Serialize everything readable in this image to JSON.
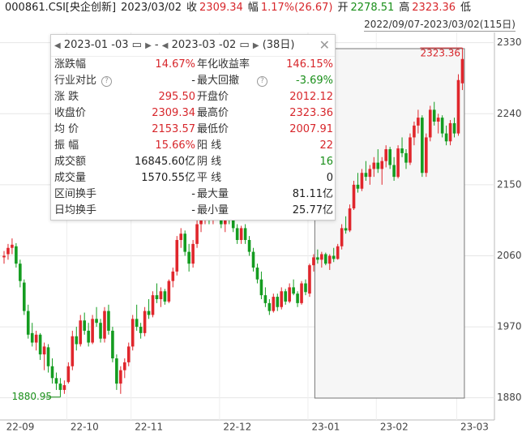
{
  "header": {
    "items": [
      {
        "label": "000861.CSI[央企创新]",
        "value": null,
        "color": "#222"
      },
      {
        "label": "2023/03/02",
        "value": null,
        "color": "#222"
      },
      {
        "label": "收",
        "value": "2309.34",
        "color": "#d7262b"
      },
      {
        "label": "幅",
        "value": "1.17%(26.67)",
        "color": "#d7262b"
      },
      {
        "label": "开",
        "value": "2278.51",
        "color": "#1a8f1a"
      },
      {
        "label": "高",
        "value": "2323.36",
        "color": "#d7262b"
      },
      {
        "label": "低",
        "value": null,
        "color": "#222"
      }
    ],
    "range": "2022/09/07-2023/03/02(115日)"
  },
  "popup": {
    "start": "2023-01 -03",
    "end": "2023-03 -02",
    "days": "(38日)",
    "rows": [
      [
        {
          "label": "涨跌幅",
          "value": "14.67%",
          "color": "#d7262b"
        },
        {
          "label": "年化收益率",
          "value": "146.15%",
          "color": "#d7262b"
        }
      ],
      [
        {
          "label": "行业对比",
          "value": "-",
          "color": "#222",
          "help": true
        },
        {
          "label": "最大回撤",
          "value": "-3.69%",
          "color": "#1a8f1a",
          "help": true
        }
      ],
      [
        {
          "label": "涨 跌",
          "value": "295.50",
          "color": "#d7262b"
        },
        {
          "label": "开盘价",
          "value": "2012.12",
          "color": "#d7262b"
        }
      ],
      [
        {
          "label": "收盘价",
          "value": "2309.34",
          "color": "#d7262b"
        },
        {
          "label": "最高价",
          "value": "2323.36",
          "color": "#d7262b"
        }
      ],
      [
        {
          "label": "均 价",
          "value": "2153.57",
          "color": "#d7262b"
        },
        {
          "label": "最低价",
          "value": "2007.91",
          "color": "#d7262b"
        }
      ],
      [
        {
          "label": "振 幅",
          "value": "15.66%",
          "color": "#d7262b"
        },
        {
          "label": "阳 线",
          "value": "22",
          "color": "#d7262b"
        }
      ],
      [
        {
          "label": "成交额",
          "value": "16845.60亿",
          "color": "#222"
        },
        {
          "label": "阴 线",
          "value": "16",
          "color": "#1a8f1a"
        }
      ],
      [
        {
          "label": "成交量",
          "value": "1570.55亿",
          "color": "#222"
        },
        {
          "label": "平 线",
          "value": "0",
          "color": "#222"
        }
      ],
      [
        {
          "label": "区间换手",
          "value": "-",
          "color": "#222"
        },
        {
          "label": "最大量",
          "value": "81.11亿",
          "color": "#222"
        }
      ],
      [
        {
          "label": "日均换手",
          "value": "-",
          "color": "#222"
        },
        {
          "label": "最小量",
          "value": "25.77亿",
          "color": "#222"
        }
      ]
    ]
  },
  "chart_data": {
    "type": "candlestick",
    "up_color": "#e0262c",
    "down_color": "#149c20",
    "ylim": [
      1855,
      2343
    ],
    "yticks": [
      1880,
      1970,
      2060,
      2150,
      2240,
      2330
    ],
    "grid": true,
    "months": [
      {
        "value": 0,
        "label": "22-09"
      },
      {
        "value": 16,
        "label": "22-10"
      },
      {
        "value": 32,
        "label": "22-11"
      },
      {
        "value": 54,
        "label": "22-12"
      },
      {
        "value": 76,
        "label": "23-01"
      },
      {
        "value": 93,
        "label": "23-02"
      },
      {
        "value": 113,
        "label": "23-03"
      }
    ],
    "selection": [
      78,
      114
    ],
    "annotations": [
      {
        "value": 2323.36,
        "index": 114,
        "color": "#d7262b"
      },
      {
        "value": 1880.95,
        "index": 14,
        "color": "#1a8f1a"
      }
    ],
    "ohlc": [
      [
        2058,
        2066,
        2050,
        2060
      ],
      [
        2062,
        2075,
        2055,
        2070
      ],
      [
        2070,
        2082,
        2062,
        2074
      ],
      [
        2072,
        2076,
        2045,
        2050
      ],
      [
        2050,
        2055,
        2020,
        2028
      ],
      [
        2026,
        2030,
        1985,
        1990
      ],
      [
        1990,
        1998,
        1955,
        1960
      ],
      [
        1962,
        1975,
        1945,
        1950
      ],
      [
        1950,
        1965,
        1940,
        1960
      ],
      [
        1960,
        1962,
        1928,
        1935
      ],
      [
        1935,
        1950,
        1915,
        1945
      ],
      [
        1944,
        1948,
        1912,
        1920
      ],
      [
        1920,
        1930,
        1898,
        1905
      ],
      [
        1905,
        1912,
        1890,
        1898
      ],
      [
        1898,
        1905,
        1880.95,
        1890
      ],
      [
        1890,
        1902,
        1885,
        1896
      ],
      [
        1900,
        1925,
        1898,
        1920
      ],
      [
        1920,
        1965,
        1915,
        1958
      ],
      [
        1958,
        1970,
        1940,
        1948
      ],
      [
        1948,
        1985,
        1945,
        1978
      ],
      [
        1978,
        1988,
        1960,
        1965
      ],
      [
        1965,
        1975,
        1945,
        1950
      ],
      [
        1950,
        1985,
        1948,
        1980
      ],
      [
        1980,
        1995,
        1970,
        1975
      ],
      [
        1975,
        1980,
        1950,
        1955
      ],
      [
        1955,
        1995,
        1950,
        1990
      ],
      [
        1990,
        1998,
        1960,
        1965
      ],
      [
        1965,
        1970,
        1925,
        1930
      ],
      [
        1930,
        1935,
        1890,
        1898
      ],
      [
        1898,
        1920,
        1885,
        1915
      ],
      [
        1915,
        1930,
        1905,
        1925
      ],
      [
        1925,
        1950,
        1920,
        1945
      ],
      [
        1945,
        1985,
        1940,
        1980
      ],
      [
        1980,
        1998,
        1965,
        1970
      ],
      [
        1970,
        1975,
        1955,
        1962
      ],
      [
        1962,
        1995,
        1958,
        1990
      ],
      [
        1990,
        2005,
        1980,
        1985
      ],
      [
        1985,
        2015,
        1982,
        2010
      ],
      [
        2010,
        2025,
        2000,
        2005
      ],
      [
        2005,
        2020,
        1995,
        2015
      ],
      [
        2015,
        2018,
        1998,
        2002
      ],
      [
        2002,
        2030,
        2000,
        2028
      ],
      [
        2028,
        2045,
        2020,
        2040
      ],
      [
        2040,
        2085,
        2035,
        2080
      ],
      [
        2080,
        2095,
        2070,
        2088
      ],
      [
        2088,
        2092,
        2060,
        2065
      ],
      [
        2065,
        2075,
        2040,
        2050
      ],
      [
        2050,
        2080,
        2045,
        2075
      ],
      [
        2075,
        2105,
        2070,
        2100
      ],
      [
        2100,
        2115,
        2090,
        2110
      ],
      [
        2110,
        2125,
        2100,
        2118
      ],
      [
        2118,
        2122,
        2100,
        2105
      ],
      [
        2105,
        2130,
        2100,
        2125
      ],
      [
        2125,
        2135,
        2105,
        2110
      ],
      [
        2110,
        2120,
        2095,
        2100
      ],
      [
        2100,
        2115,
        2090,
        2112
      ],
      [
        2112,
        2125,
        2100,
        2108
      ],
      [
        2108,
        2112,
        2090,
        2095
      ],
      [
        2095,
        2100,
        2075,
        2080
      ],
      [
        2080,
        2098,
        2075,
        2095
      ],
      [
        2095,
        2100,
        2075,
        2080
      ],
      [
        2080,
        2085,
        2060,
        2065
      ],
      [
        2065,
        2070,
        2040,
        2045
      ],
      [
        2045,
        2050,
        2025,
        2030
      ],
      [
        2030,
        2040,
        2005,
        2010
      ],
      [
        2010,
        2020,
        1995,
        2000
      ],
      [
        2000,
        2005,
        1985,
        1990
      ],
      [
        1990,
        2012,
        1988,
        2008
      ],
      [
        2008,
        2012,
        1990,
        1995
      ],
      [
        1995,
        2020,
        1992,
        2015
      ],
      [
        2015,
        2018,
        1998,
        2002
      ],
      [
        2002,
        2025,
        2000,
        2020
      ],
      [
        2020,
        2030,
        2010,
        2012
      ],
      [
        2012,
        2015,
        1995,
        2000
      ],
      [
        2000,
        2028,
        1998,
        2025
      ],
      [
        2025,
        2030,
        2010,
        2014
      ],
      [
        2012.12,
        2050,
        2007.91,
        2048
      ],
      [
        2048,
        2062,
        2040,
        2058
      ],
      [
        2058,
        2068,
        2050,
        2055
      ],
      [
        2055,
        2065,
        2045,
        2062
      ],
      [
        2062,
        2064,
        2048,
        2050
      ],
      [
        2050,
        2062,
        2042,
        2060
      ],
      [
        2060,
        2070,
        2052,
        2056
      ],
      [
        2056,
        2075,
        2055,
        2072
      ],
      [
        2072,
        2100,
        2068,
        2095
      ],
      [
        2095,
        2110,
        2088,
        2092
      ],
      [
        2092,
        2125,
        2090,
        2120
      ],
      [
        2120,
        2155,
        2118,
        2150
      ],
      [
        2150,
        2165,
        2140,
        2145
      ],
      [
        2145,
        2170,
        2142,
        2165
      ],
      [
        2165,
        2180,
        2155,
        2160
      ],
      [
        2160,
        2175,
        2150,
        2170
      ],
      [
        2170,
        2185,
        2160,
        2178
      ],
      [
        2178,
        2195,
        2165,
        2170
      ],
      [
        2170,
        2185,
        2150,
        2180
      ],
      [
        2180,
        2200,
        2172,
        2195
      ],
      [
        2195,
        2198,
        2170,
        2175
      ],
      [
        2175,
        2185,
        2155,
        2160
      ],
      [
        2160,
        2200,
        2158,
        2196
      ],
      [
        2196,
        2210,
        2185,
        2190
      ],
      [
        2190,
        2195,
        2170,
        2178
      ],
      [
        2178,
        2215,
        2175,
        2210
      ],
      [
        2210,
        2230,
        2200,
        2225
      ],
      [
        2225,
        2245,
        2215,
        2235
      ],
      [
        2235,
        2238,
        2160,
        2165
      ],
      [
        2165,
        2215,
        2160,
        2210
      ],
      [
        2210,
        2250,
        2205,
        2245
      ],
      [
        2245,
        2255,
        2225,
        2230
      ],
      [
        2230,
        2240,
        2215,
        2235
      ],
      [
        2235,
        2238,
        2210,
        2215
      ],
      [
        2215,
        2225,
        2200,
        2205
      ],
      [
        2205,
        2232,
        2200,
        2228
      ],
      [
        2228,
        2235,
        2210,
        2215
      ],
      [
        2215,
        2290,
        2212,
        2282.67
      ],
      [
        2278.51,
        2323.36,
        2270,
        2309.34
      ]
    ]
  }
}
